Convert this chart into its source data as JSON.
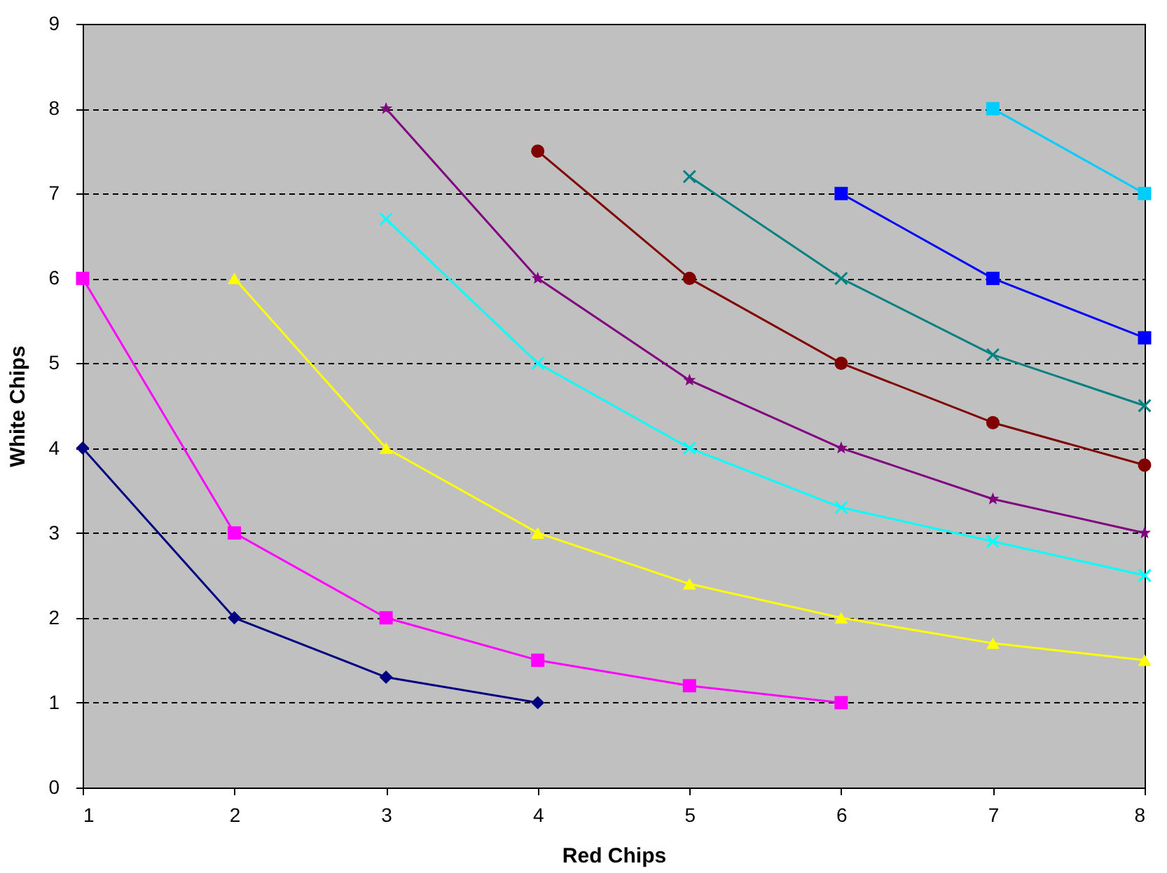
{
  "chart_data": {
    "type": "line",
    "xlabel": "Red Chips",
    "ylabel": "White Chips",
    "xlim": [
      1,
      8
    ],
    "ylim": [
      0,
      9
    ],
    "xticks": [
      1,
      2,
      3,
      4,
      5,
      6,
      7,
      8
    ],
    "yticks": [
      0,
      1,
      2,
      3,
      4,
      5,
      6,
      7,
      8,
      9
    ],
    "grid": "y",
    "line_style": "solid",
    "series": [
      {
        "color": "#000080",
        "marker": "diamond",
        "x": [
          1,
          2,
          3,
          4
        ],
        "values": [
          4,
          2,
          1.3,
          1
        ]
      },
      {
        "color": "#ff00ff",
        "marker": "square",
        "x": [
          1,
          2,
          3,
          4,
          5,
          6
        ],
        "values": [
          6,
          3,
          2,
          1.5,
          1.2,
          1
        ]
      },
      {
        "color": "#ffff00",
        "marker": "triangle",
        "x": [
          2,
          3,
          4,
          5,
          6,
          7,
          8
        ],
        "values": [
          6,
          4,
          3,
          2.4,
          2,
          1.7,
          1.5
        ]
      },
      {
        "color": "#00ffff",
        "marker": "cross",
        "x": [
          3,
          4,
          5,
          6,
          7,
          8
        ],
        "values": [
          6.7,
          5,
          4,
          3.3,
          2.9,
          2.5
        ]
      },
      {
        "color": "#800080",
        "marker": "star",
        "x": [
          3,
          4,
          5,
          6,
          7,
          8
        ],
        "values": [
          8,
          6,
          4.8,
          4,
          3.4,
          3
        ]
      },
      {
        "color": "#800000",
        "marker": "circle",
        "x": [
          4,
          5,
          6,
          7,
          8
        ],
        "values": [
          7.5,
          6,
          5,
          4.3,
          3.8
        ]
      },
      {
        "color": "#008080",
        "marker": "cross",
        "x": [
          5,
          6,
          7,
          8
        ],
        "values": [
          7.2,
          6,
          5.1,
          4.5
        ]
      },
      {
        "color": "#0000ff",
        "marker": "square",
        "x": [
          6,
          7,
          8
        ],
        "values": [
          7,
          6,
          5.3
        ]
      },
      {
        "color": "#00ccff",
        "marker": "square",
        "x": [
          7,
          8
        ],
        "values": [
          8,
          7
        ]
      }
    ]
  }
}
